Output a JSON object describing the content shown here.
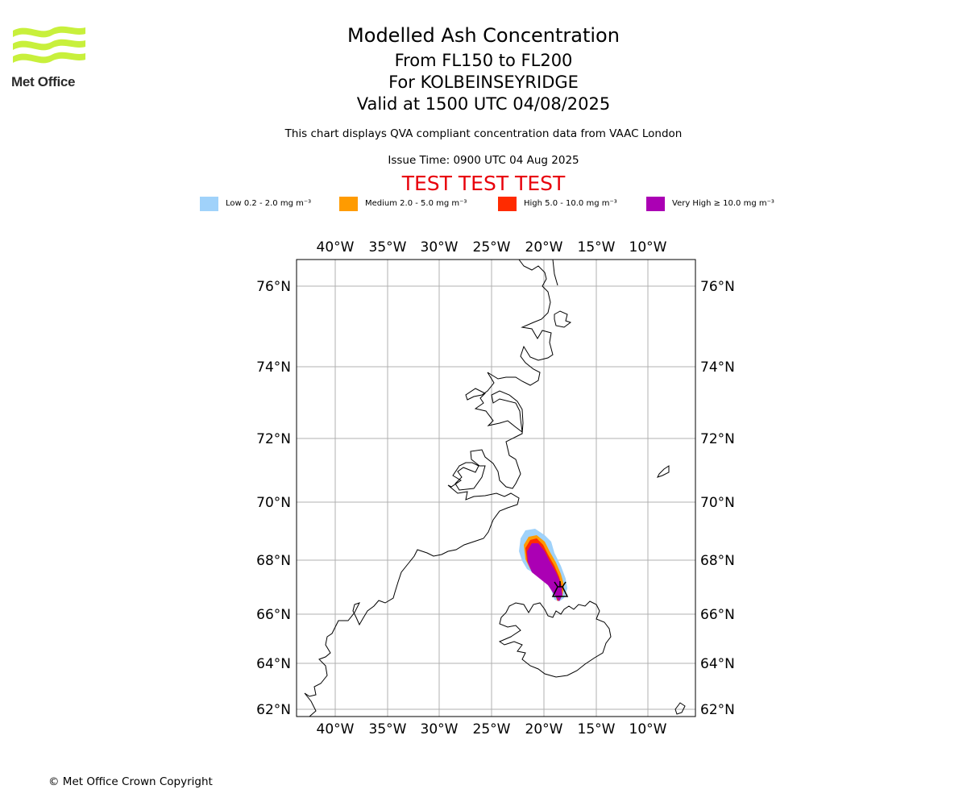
{
  "logo": {
    "text": "Met Office",
    "color": "#c8f03c"
  },
  "header": {
    "title": "Modelled Ash Concentration",
    "levels": "From FL150 to FL200",
    "volcano": "For KOLBEINSEYRIDGE",
    "valid": "Valid at 1500 UTC 04/08/2025",
    "description": "This chart displays QVA compliant concentration data from VAAC London",
    "issue_time": "Issue Time: 0900 UTC 04 Aug 2025",
    "test_banner": "TEST TEST TEST",
    "test_color": "#e8000b"
  },
  "legend": [
    {
      "label": "Low 0.2 - 2.0 mg m⁻³",
      "color": "#a0d2fa"
    },
    {
      "label": "Medium 2.0 - 5.0 mg m⁻³",
      "color": "#ff9b00"
    },
    {
      "label": "High 5.0 - 10.0 mg m⁻³",
      "color": "#ff2b00"
    },
    {
      "label": "Very High ≥ 10.0 mg m⁻³",
      "color": "#ab00b4"
    }
  ],
  "map": {
    "lon_labels": [
      "40°W",
      "35°W",
      "30°W",
      "25°W",
      "20°W",
      "15°W",
      "10°W"
    ],
    "lat_labels": [
      "76°N",
      "74°N",
      "72°N",
      "70°N",
      "68°N",
      "66°N",
      "64°N",
      "62°N"
    ],
    "grid": true,
    "volcano_marker": "volcano-icon",
    "volcano_name": "KOLBEINSEYRIDGE"
  },
  "footer": {
    "copyright": "© Met Office Crown Copyright"
  }
}
